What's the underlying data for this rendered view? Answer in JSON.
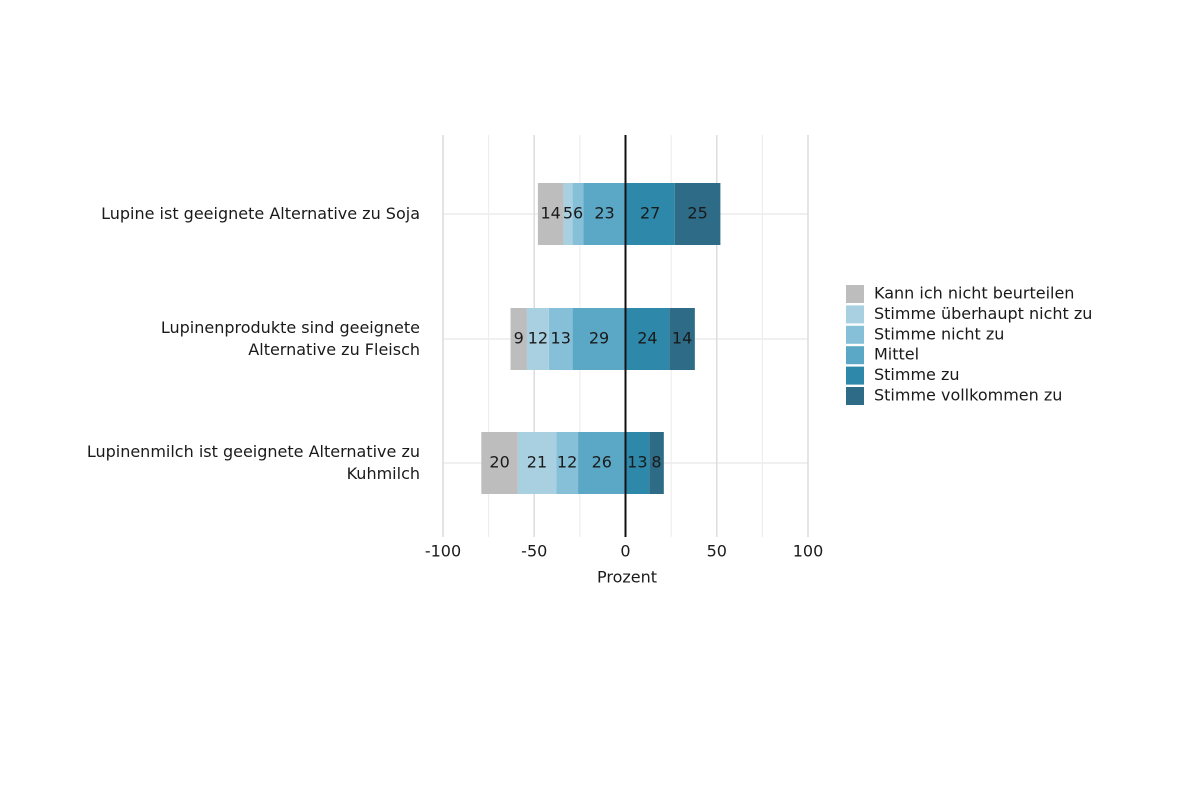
{
  "chart_data": {
    "type": "diverging_bar",
    "categories": [
      "Lupine ist geeignete Alternative zu Soja",
      "Lupinenprodukte sind geeignete\nAlternative zu Fleisch",
      "Lupinenmilch ist geeignete Alternative zu\nKuhmilch"
    ],
    "series": [
      {
        "name": "Kann ich nicht beurteilen",
        "color": "#bdbdbd",
        "values": [
          14,
          9,
          20
        ]
      },
      {
        "name": "Stimme überhaupt nicht zu",
        "color": "#a8d0e0",
        "values": [
          5,
          12,
          21
        ]
      },
      {
        "name": "Stimme nicht zu",
        "color": "#86c0d8",
        "values": [
          6,
          13,
          12
        ]
      },
      {
        "name": "Mittel",
        "color": "#5ba8c6",
        "values": [
          23,
          29,
          26
        ]
      },
      {
        "name": "Stimme zu",
        "color": "#2d88aa",
        "values": [
          27,
          24,
          13
        ]
      },
      {
        "name": "Stimme vollkommen zu",
        "color": "#2e6b87",
        "values": [
          25,
          14,
          8
        ]
      }
    ],
    "xlabel": "Prozent",
    "xlim": [
      -100,
      100
    ],
    "xticks": [
      -100,
      -50,
      0,
      50,
      100
    ],
    "xminor": [
      -75,
      -25,
      25,
      75
    ],
    "grid": true
  }
}
